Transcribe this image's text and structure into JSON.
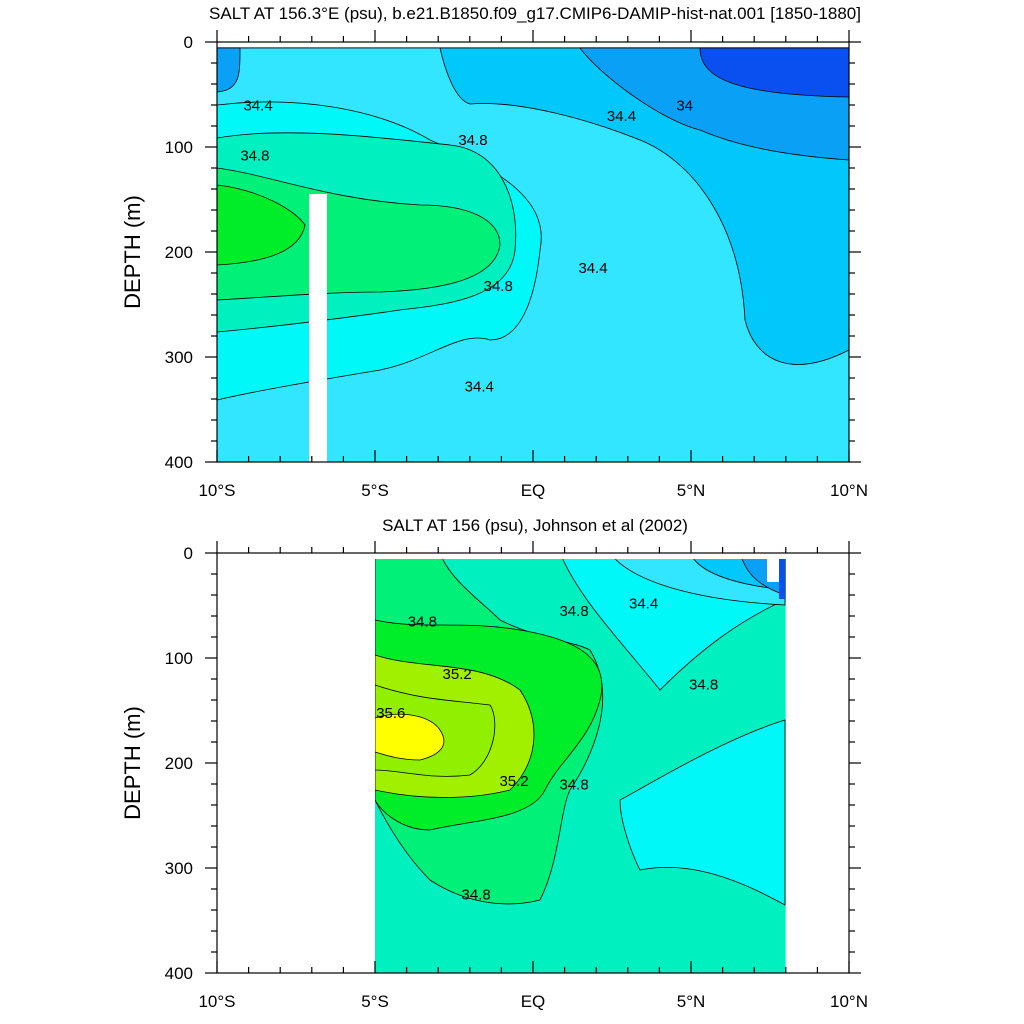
{
  "chart_data": [
    {
      "type": "heatmap",
      "title": "SALT AT 156.3°E (psu), b.e21.B1850.f09_g17.CMIP6-DAMIP-hist-nat.001 [1850-1880]",
      "ylabel": "DEPTH (m)",
      "xlabel": "",
      "x_ticks": [
        "10°S",
        "5°S",
        "EQ",
        "5°N",
        "10°N"
      ],
      "xlim": [
        -10,
        10
      ],
      "y_ticks": [
        "0",
        "100",
        "200",
        "300",
        "400"
      ],
      "ylim": [
        0,
        400
      ],
      "y_reversed": true,
      "contour_labels": [
        {
          "text": "34.4",
          "x": -8.7,
          "y": 65
        },
        {
          "text": "34.8",
          "x": -8.8,
          "y": 113
        },
        {
          "text": "34.8",
          "x": -1.9,
          "y": 98
        },
        {
          "text": "34.4",
          "x": 2.8,
          "y": 75
        },
        {
          "text": "34",
          "x": 4.8,
          "y": 65
        },
        {
          "text": "34.4",
          "x": 1.9,
          "y": 220
        },
        {
          "text": "34.8",
          "x": -1.1,
          "y": 237
        },
        {
          "text": "34.4",
          "x": -1.7,
          "y": 333
        }
      ],
      "missing_data_columns": [
        {
          "x_from": -7.1,
          "x_to": -6.6,
          "depth_from": 145,
          "depth_to": 400
        }
      ]
    },
    {
      "type": "heatmap",
      "title": "SALT AT 156 (psu), Johnson et al (2002)",
      "ylabel": "DEPTH (m)",
      "xlabel": "",
      "x_ticks": [
        "10°S",
        "5°S",
        "EQ",
        "5°N",
        "10°N"
      ],
      "xlim": [
        -10,
        10
      ],
      "y_ticks": [
        "0",
        "100",
        "200",
        "300",
        "400"
      ],
      "ylim": [
        0,
        400
      ],
      "y_reversed": true,
      "data_extent_x": [
        -5,
        8
      ],
      "contour_labels": [
        {
          "text": "34.8",
          "x": -3.5,
          "y": 70
        },
        {
          "text": "35.2",
          "x": -2.4,
          "y": 120
        },
        {
          "text": "35.6",
          "x": -4.5,
          "y": 157
        },
        {
          "text": "35.2",
          "x": -0.6,
          "y": 222
        },
        {
          "text": "34.8",
          "x": 1.3,
          "y": 60
        },
        {
          "text": "34.4",
          "x": 3.5,
          "y": 53
        },
        {
          "text": "34.8",
          "x": 5.4,
          "y": 130
        },
        {
          "text": "34.8",
          "x": 1.3,
          "y": 225
        },
        {
          "text": "34.8",
          "x": -1.8,
          "y": 330
        }
      ]
    }
  ],
  "colors": {
    "s_33_8": "#0a50f0",
    "s_34_0": "#0aa0f5",
    "s_34_2": "#00c8fa",
    "s_34_4": "#33e6ff",
    "s_34_6": "#00f8f8",
    "s_34_8": "#00f0c0",
    "s_35_0": "#00f078",
    "s_35_2": "#00ee2a",
    "s_35_4": "#a0f000",
    "s_35_6": "#ffff00"
  }
}
